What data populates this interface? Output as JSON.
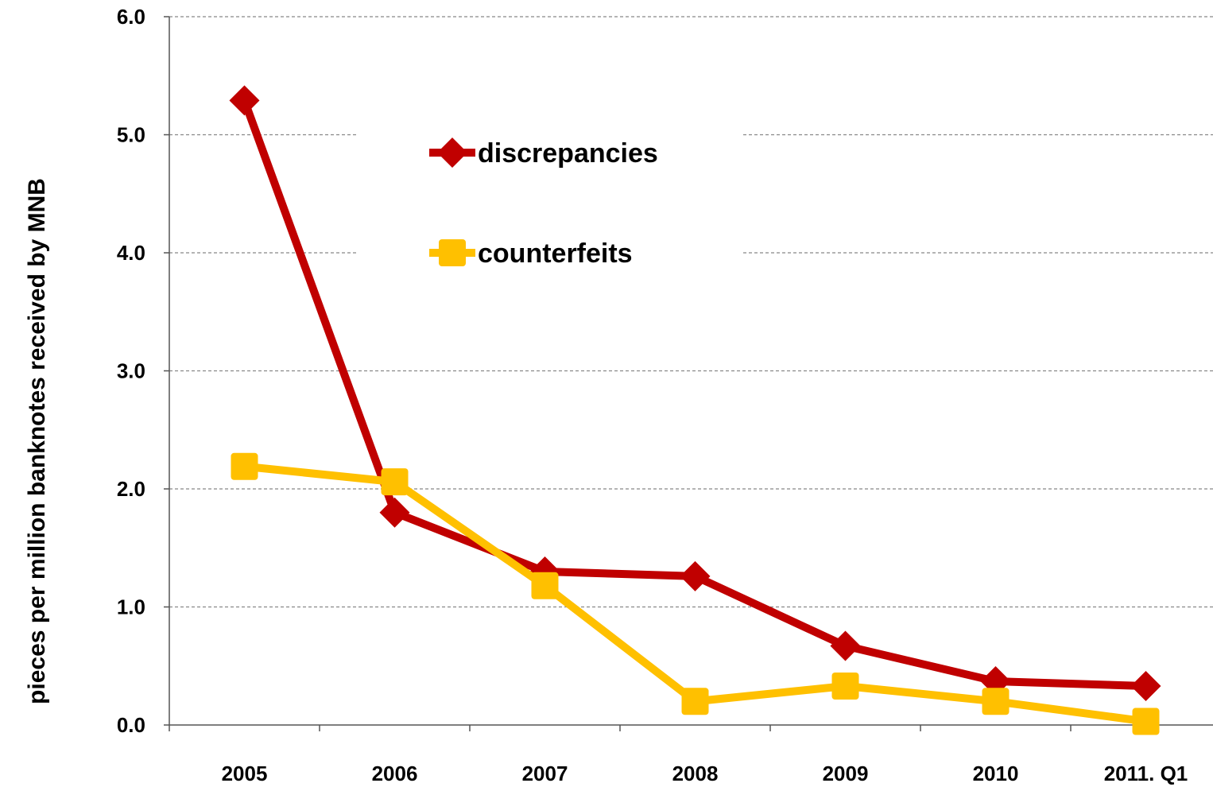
{
  "chart_data": {
    "type": "line",
    "categories": [
      "2005",
      "2006",
      "2007",
      "2008",
      "2009",
      "2010",
      "2011. Q1"
    ],
    "series": [
      {
        "name": "discrepancies",
        "color": "#c00000",
        "marker": "diamond",
        "values": [
          5.29,
          1.8,
          1.3,
          1.26,
          0.67,
          0.37,
          0.33
        ]
      },
      {
        "name": "counterfeits",
        "color": "#ffc000",
        "marker": "square",
        "values": [
          2.19,
          2.06,
          1.18,
          0.2,
          0.33,
          0.2,
          0.03
        ]
      }
    ],
    "ylabel": "pieces per million banknotes received by MNB",
    "ylim": [
      0,
      6
    ],
    "yticks": [
      "0.0",
      "1.0",
      "2.0",
      "3.0",
      "4.0",
      "5.0",
      "6.0"
    ],
    "grid": true,
    "legend_position": "top-center"
  }
}
